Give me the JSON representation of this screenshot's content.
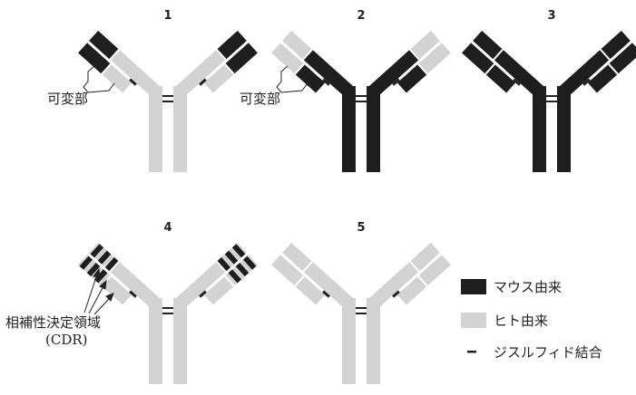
{
  "colors": {
    "mouse": "#1e1e1e",
    "human": "#d3d3d3",
    "line": "#222222"
  },
  "antibodies": [
    {
      "number": "1",
      "variable_label": "可変部"
    },
    {
      "number": "2",
      "variable_label": "可変部"
    },
    {
      "number": "3"
    },
    {
      "number": "4",
      "cdr_label_line1": "相補性決定領域",
      "cdr_label_line2": "(CDR)"
    },
    {
      "number": "5"
    }
  ],
  "legend": {
    "mouse": "マウス由来",
    "human": "ヒト由来",
    "disulfide": "ジスルフィド結合"
  }
}
